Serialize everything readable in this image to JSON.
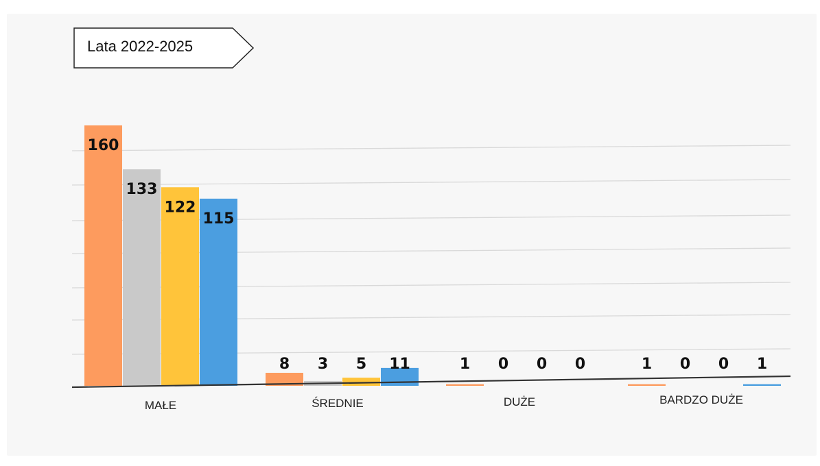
{
  "title": "Lata 2022-2025",
  "colors": {
    "series": [
      "#fd9b5e",
      "#c9c9c9",
      "#ffc43a",
      "#4b9ee0"
    ],
    "grid": "#d9d9d9",
    "axis": "#333333",
    "background": "#f7f7f7"
  },
  "chart_data": {
    "type": "bar",
    "title": "Lata 2022-2025",
    "categories": [
      "MAŁE",
      "ŚREDNIE",
      "DUŻE",
      "BARDZO DUŻE"
    ],
    "series": [
      {
        "values": [
          160,
          8,
          1,
          1
        ]
      },
      {
        "values": [
          133,
          3,
          0,
          0
        ]
      },
      {
        "values": [
          122,
          5,
          0,
          0
        ]
      },
      {
        "values": [
          115,
          11,
          0,
          1
        ]
      }
    ],
    "data_labels": [
      [
        "160",
        "8",
        "1",
        "1"
      ],
      [
        "133",
        "3",
        "0",
        "0"
      ],
      [
        "122",
        "5",
        "0",
        "0"
      ],
      [
        "115",
        "11",
        "0",
        "1"
      ]
    ],
    "ylim": [
      0,
      160
    ],
    "grid": true,
    "legend": "none",
    "xlabel": "",
    "ylabel": ""
  }
}
